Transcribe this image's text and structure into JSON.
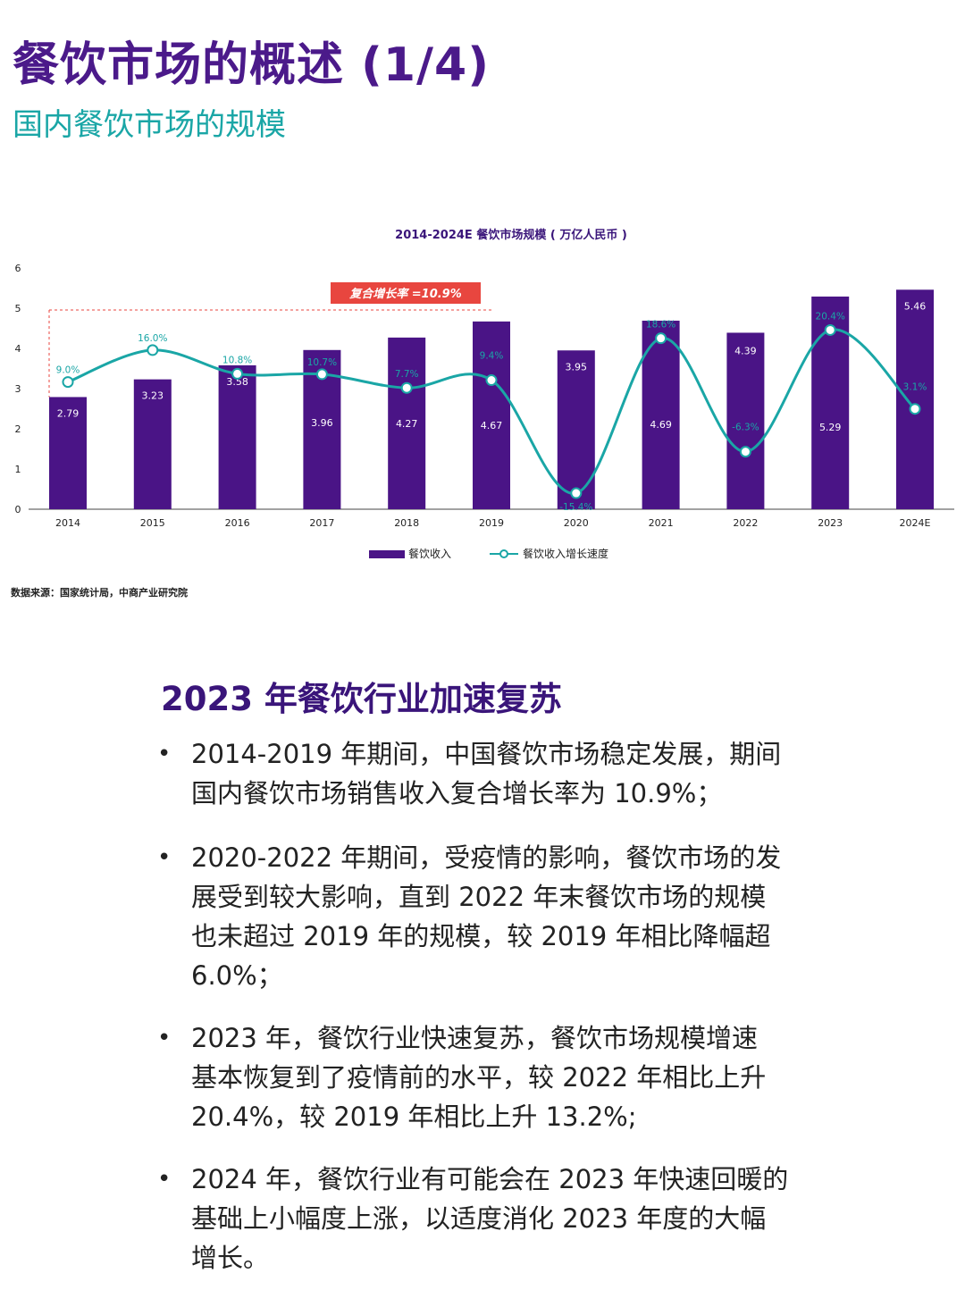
{
  "header": {
    "title": "餐饮市场的概述 (1/4)",
    "subtitle": "国内餐饮市场的规模"
  },
  "chart_data": {
    "type": "bar",
    "title": "2014-2024E 餐饮市场规模 ( 万亿人民币 )",
    "categories": [
      "2014",
      "2015",
      "2016",
      "2017",
      "2018",
      "2019",
      "2020",
      "2021",
      "2022",
      "2023",
      "2024E"
    ],
    "ylim": [
      0,
      6
    ],
    "yticks": [
      0,
      1,
      2,
      3,
      4,
      5,
      6
    ],
    "series": [
      {
        "name": "餐饮收入",
        "type": "bar",
        "color": "#4a1486",
        "values": [
          2.79,
          3.23,
          3.58,
          3.96,
          4.27,
          4.67,
          3.95,
          4.69,
          4.39,
          5.29,
          5.46
        ],
        "labels": [
          "2.79",
          "3.23",
          "3.58",
          "3.96",
          "4.27",
          "4.67",
          "3.95",
          "4.69",
          "4.39",
          "5.29",
          "5.46"
        ]
      },
      {
        "name": "餐饮收入增长速度",
        "type": "line",
        "color": "#1aa6a6",
        "values": [
          9.0,
          16.0,
          10.8,
          10.7,
          7.7,
          9.4,
          -15.4,
          18.6,
          -6.3,
          20.4,
          3.1
        ],
        "labels": [
          "9.0%",
          "16.0%",
          "10.8%",
          "10.7%",
          "7.7%",
          "9.4%",
          "-15.4%",
          "18.6%",
          "-6.3%",
          "20.4%",
          "3.1%"
        ]
      }
    ],
    "annotation": {
      "text": "复合增长率 =10.9%",
      "color": "#e8463f"
    },
    "legend_position": "bottom",
    "grid": false
  },
  "source": "数据来源：国家统计局，中商产业研究院",
  "section": {
    "title": "2023 年餐饮行业加速复苏",
    "bullet_symbol": "•",
    "bullets": [
      [
        "2014-2019 年期间，中国餐饮市场稳定发展，期间",
        "国内餐饮市场销售收入复合增长率为 10.9%；"
      ],
      [
        "2020-2022 年期间，受疫情的影响，餐饮市场的发",
        "展受到较大影响，直到 2022 年末餐饮市场的规模",
        "也未超过 2019 年的规模，较 2019 年相比降幅超",
        "6.0%；"
      ],
      [
        "2023 年，餐饮行业快速复苏，餐饮市场规模增速",
        "基本恢复到了疫情前的水平，较 2022 年相比上升",
        "20.4%，较 2019 年相比上升 13.2%;"
      ],
      [
        "2024 年，餐饮行业有可能会在 2023 年快速回暖的",
        "基础上小幅度上涨，以适度消化 2023 年度的大幅",
        "增长。"
      ]
    ]
  }
}
